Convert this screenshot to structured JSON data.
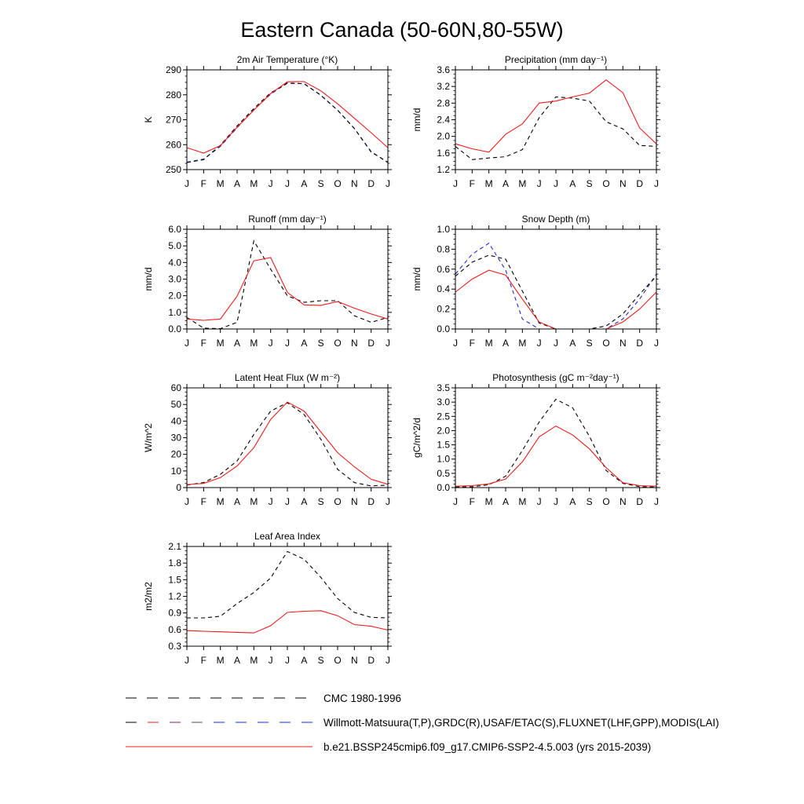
{
  "title": "Eastern Canada (50-60N,80-55W)",
  "months": [
    "J",
    "F",
    "M",
    "A",
    "M",
    "J",
    "J",
    "A",
    "S",
    "O",
    "N",
    "D",
    "J"
  ],
  "colors": {
    "model": "#ee1c1c",
    "obs": "#000000",
    "obs2": "#1a2ad6"
  },
  "chart_data": [
    {
      "type": "line",
      "id": "temp",
      "title": "2m Air Temperature (°K)",
      "ylabel": "K",
      "ylim": [
        250,
        290
      ],
      "yticks": [
        250,
        260,
        270,
        280,
        290
      ],
      "ytick_labels": [
        "250",
        "260",
        "270",
        "280",
        "290"
      ],
      "series": [
        {
          "name": "Willmott-Matsuura",
          "style": "obs2",
          "values": [
            253.0,
            254.2,
            259.3,
            266.8,
            274.0,
            280.2,
            284.8,
            284.4,
            279.8,
            273.8,
            266.5,
            257.0,
            253.0
          ]
        },
        {
          "name": "CMC 1980-1996",
          "style": "obs",
          "values": [
            252.8,
            254.0,
            259.8,
            267.5,
            274.5,
            280.8,
            284.6,
            284.5,
            279.8,
            273.8,
            266.5,
            257.2,
            252.8
          ]
        },
        {
          "name": "model",
          "style": "model",
          "values": [
            258.8,
            256.6,
            259.6,
            267.0,
            273.8,
            280.5,
            285.2,
            285.3,
            281.6,
            276.4,
            270.6,
            264.8,
            258.8
          ]
        }
      ]
    },
    {
      "type": "line",
      "id": "precip",
      "title": "Precipitation (mm day⁻¹)",
      "ylabel": "mm/d",
      "ylim": [
        1.2,
        3.6
      ],
      "yticks": [
        1.2,
        1.6,
        2.0,
        2.4,
        2.8,
        3.2,
        3.6
      ],
      "ytick_labels": [
        "1.2",
        "1.6",
        "2.0",
        "2.4",
        "2.8",
        "3.2",
        "3.6"
      ],
      "series": [
        {
          "name": "Willmott-Matsuura",
          "style": "obs",
          "values": [
            1.76,
            1.44,
            1.48,
            1.51,
            1.68,
            2.45,
            2.95,
            2.92,
            2.85,
            2.35,
            2.18,
            1.78,
            1.76
          ]
        },
        {
          "name": "model",
          "style": "model",
          "values": [
            1.82,
            1.7,
            1.62,
            2.05,
            2.3,
            2.8,
            2.85,
            2.95,
            3.04,
            3.36,
            3.05,
            2.2,
            1.82
          ]
        }
      ]
    },
    {
      "type": "line",
      "id": "runoff",
      "title": "Runoff (mm day⁻¹)",
      "ylabel": "mm/d",
      "ylim": [
        0,
        6
      ],
      "yticks": [
        0,
        1,
        2,
        3,
        4,
        5,
        6
      ],
      "ytick_labels": [
        "0.0",
        "1.0",
        "2.0",
        "3.0",
        "4.0",
        "5.0",
        "6.0"
      ],
      "series": [
        {
          "name": "GRDC",
          "style": "obs",
          "values": [
            0.7,
            0.05,
            0.02,
            0.4,
            5.3,
            3.6,
            2.0,
            1.6,
            1.7,
            1.7,
            0.8,
            0.4,
            0.7
          ]
        },
        {
          "name": "model",
          "style": "model",
          "values": [
            0.6,
            0.52,
            0.6,
            1.98,
            4.1,
            4.3,
            2.2,
            1.45,
            1.42,
            1.65,
            1.25,
            0.9,
            0.6
          ]
        }
      ]
    },
    {
      "type": "line",
      "id": "snow",
      "title": "Snow Depth (m)",
      "ylabel": "mm/d",
      "ylim": [
        0,
        1
      ],
      "yticks": [
        0,
        0.2,
        0.4,
        0.6,
        0.8,
        1.0
      ],
      "ytick_labels": [
        "0.0",
        "0.2",
        "0.4",
        "0.6",
        "0.8",
        "1.0"
      ],
      "series": [
        {
          "name": "USAF/ETAC",
          "style": "obs2",
          "values": [
            0.55,
            0.75,
            0.86,
            0.59,
            0.1,
            0.0,
            0.0,
            0.0,
            0.0,
            0.0,
            0.1,
            0.3,
            0.55
          ]
        },
        {
          "name": "CMC 1980-1996",
          "style": "obs",
          "values": [
            0.53,
            0.67,
            0.74,
            0.7,
            0.38,
            0.06,
            0.0,
            0.0,
            0.0,
            0.03,
            0.15,
            0.35,
            0.53
          ]
        },
        {
          "name": "model",
          "style": "model",
          "values": [
            0.37,
            0.5,
            0.59,
            0.54,
            0.3,
            0.07,
            0.0,
            0.0,
            0.0,
            0.0,
            0.07,
            0.2,
            0.37
          ]
        }
      ]
    },
    {
      "type": "line",
      "id": "lhf",
      "title": "Latent Heat Flux (W m⁻²)",
      "ylabel": "W/m^2",
      "ylim": [
        0,
        60
      ],
      "yticks": [
        0,
        10,
        20,
        30,
        40,
        50,
        60
      ],
      "ytick_labels": [
        "0",
        "10",
        "20",
        "30",
        "40",
        "50",
        "60"
      ],
      "series": [
        {
          "name": "FLUXNET",
          "style": "obs",
          "values": [
            1.5,
            3.0,
            8.0,
            16.0,
            32.0,
            46.0,
            51.0,
            44.0,
            29.0,
            11.0,
            3.0,
            1.0,
            1.5
          ]
        },
        {
          "name": "model",
          "style": "model",
          "values": [
            1.8,
            2.5,
            6.0,
            13.0,
            24.0,
            41.0,
            51.5,
            46.0,
            33.5,
            21.0,
            12.5,
            5.0,
            2.0
          ]
        }
      ]
    },
    {
      "type": "line",
      "id": "gpp",
      "title": "Photosynthesis (gC m⁻²day⁻¹)",
      "ylabel": "gC/m^2/d",
      "ylim": [
        0,
        3.5
      ],
      "yticks": [
        0,
        0.5,
        1.0,
        1.5,
        2.0,
        2.5,
        3.0,
        3.5
      ],
      "ytick_labels": [
        "0.0",
        "0.5",
        "1.0",
        "1.5",
        "2.0",
        "2.5",
        "3.0",
        "3.5"
      ],
      "series": [
        {
          "name": "FLUXNET",
          "style": "obs",
          "values": [
            0.02,
            0.03,
            0.1,
            0.4,
            1.3,
            2.3,
            3.1,
            2.8,
            1.8,
            0.6,
            0.15,
            0.03,
            0.02
          ]
        },
        {
          "name": "model",
          "style": "model",
          "values": [
            0.05,
            0.07,
            0.13,
            0.3,
            0.9,
            1.78,
            2.16,
            1.85,
            1.36,
            0.7,
            0.17,
            0.07,
            0.05
          ]
        }
      ]
    },
    {
      "type": "line",
      "id": "lai",
      "title": "Leaf Area Index",
      "ylabel": "m2/m2",
      "ylim": [
        0.3,
        2.1
      ],
      "yticks": [
        0.3,
        0.6,
        0.9,
        1.2,
        1.5,
        1.8,
        2.1
      ],
      "ytick_labels": [
        "0.3",
        "0.6",
        "0.9",
        "1.2",
        "1.5",
        "1.8",
        "2.1"
      ],
      "series": [
        {
          "name": "MODIS",
          "style": "obs",
          "values": [
            0.81,
            0.81,
            0.84,
            1.07,
            1.27,
            1.53,
            2.01,
            1.87,
            1.54,
            1.16,
            0.91,
            0.82,
            0.81
          ]
        },
        {
          "name": "model",
          "style": "model",
          "values": [
            0.58,
            0.57,
            0.56,
            0.55,
            0.54,
            0.67,
            0.91,
            0.93,
            0.94,
            0.85,
            0.69,
            0.66,
            0.59
          ]
        }
      ]
    }
  ],
  "legend": [
    {
      "label": "CMC 1980-1996",
      "style": "obs"
    },
    {
      "label": "Willmott-Matsuura(T,P),GRDC(R),USAF/ETAC(S),FLUXNET(LHF,GPP),MODIS(LAI)",
      "style": "obs_mixed"
    },
    {
      "label": "b.e21.BSSP245cmip6.f09_g17.CMIP6-SSP2-4.5.003 (yrs 2015-2039)",
      "style": "model"
    }
  ]
}
